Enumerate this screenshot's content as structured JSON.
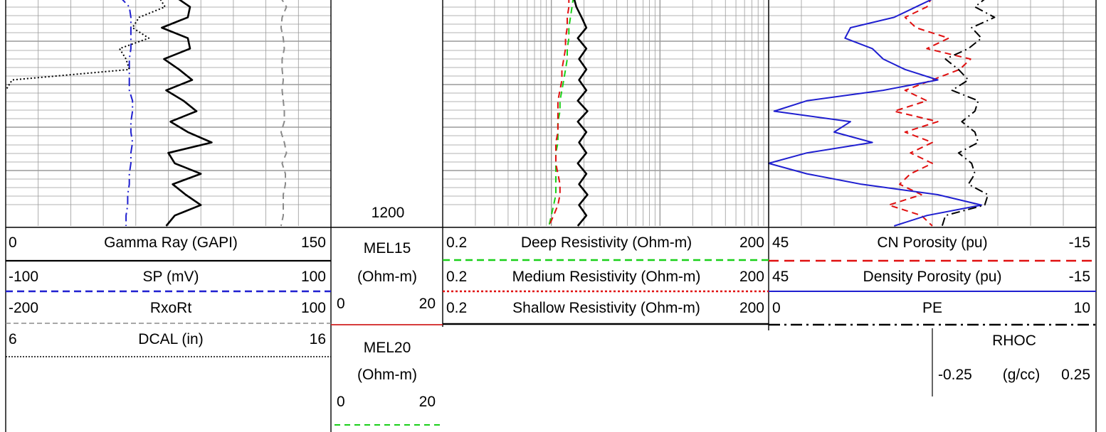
{
  "depth_label": "1200",
  "colors": {
    "black": "#000000",
    "blue": "#1f1fd0",
    "red": "#e01010",
    "green": "#19d019",
    "gray": "#8a8a8a",
    "grid": "#9a9a9a",
    "mel15": "#d02020",
    "mel20": "#19d019"
  },
  "track1": {
    "rows": [
      {
        "min": "0",
        "name": "Gamma Ray (GAPI)",
        "max": "150"
      },
      {
        "min": "-100",
        "name": "SP (mV)",
        "max": "100"
      },
      {
        "min": "-200",
        "name": "RxoRt",
        "max": "100"
      },
      {
        "min": "6",
        "name": "DCAL (in)",
        "max": "16"
      }
    ]
  },
  "track2": {
    "mel15": {
      "name": "MEL15",
      "unit": "(Ohm-m)",
      "min": "0",
      "max": "20"
    },
    "mel20": {
      "name": "MEL20",
      "unit": "(Ohm-m)",
      "min": "0",
      "max": "20"
    }
  },
  "track3": {
    "rows": [
      {
        "min": "0.2",
        "name": "Deep Resistivity (Ohm-m)",
        "max": "200"
      },
      {
        "min": "0.2",
        "name": "Medium Resistivity (Ohm-m)",
        "max": "200"
      },
      {
        "min": "0.2",
        "name": "Shallow Resistivity (Ohm-m)",
        "max": "200"
      }
    ]
  },
  "track4": {
    "rows": [
      {
        "min": "45",
        "name": "CN Porosity (pu)",
        "max": "-15"
      },
      {
        "min": "45",
        "name": "Density Porosity (pu)",
        "max": "-15"
      },
      {
        "min": "0",
        "name": "PE",
        "max": "10"
      }
    ],
    "rhoc": {
      "name": "RHOC",
      "min": "-0.25",
      "unit": "(g/cc)",
      "max": "0.25"
    }
  },
  "chart_data": {
    "type": "line",
    "title": "",
    "depth_tick": 1200,
    "tracks": [
      {
        "scale": "linear",
        "series": [
          {
            "name": "Gamma Ray (GAPI)",
            "range": [
              0,
              150
            ],
            "style": "solid",
            "color": "black",
            "values": [
              78,
              85,
              84,
              72,
              84,
              85,
              73,
              80,
              86,
              74,
              82,
              88,
              76,
              84,
              95,
              75,
              78,
              90,
              77,
              83,
              90,
              78,
              74
            ]
          },
          {
            "name": "SP (mV)",
            "range": [
              -100,
              100
            ],
            "style": "dash-dot",
            "color": "blue",
            "values": [
              -30,
              -24,
              -23,
              -23,
              -23,
              -23,
              -24,
              -24,
              -24,
              -24,
              -22,
              -22,
              -23,
              -23,
              -22,
              -23,
              -23,
              -24,
              -24,
              -25,
              -25,
              -26,
              -26
            ]
          },
          {
            "name": "RxoRt",
            "range": [
              -200,
              100
            ],
            "style": "dashed",
            "color": "gray",
            "values": [
              53,
              59,
              55,
              54,
              56,
              57,
              55,
              55,
              56,
              55,
              56,
              57,
              57,
              54,
              57,
              59,
              55,
              58,
              58,
              56,
              56,
              56,
              54
            ]
          },
          {
            "name": "DCAL (in)",
            "range": [
              6,
              16
            ],
            "style": "dotted",
            "color": "black",
            "values": [
              10.7,
              10.9,
              10.1,
              9.9,
              10.4,
              9.5,
              9.7,
              9.8,
              6.2,
              6.0,
              null,
              null,
              null,
              null,
              null,
              null,
              null,
              null,
              null,
              null,
              null,
              null,
              null
            ]
          }
        ]
      },
      {
        "scale": "log",
        "series": [
          {
            "name": "Deep Resistivity (Ohm-m)",
            "range": [
              0.2,
              200
            ],
            "style": "dashed",
            "color": "green",
            "values": [
              3.2,
              3.1,
              3.0,
              2.9,
              2.9,
              2.8,
              2.8,
              2.7,
              2.6,
              2.5,
              2.4,
              2.4,
              2.3,
              2.3,
              2.3,
              2.2,
              2.2,
              2.2,
              2.2,
              2.2,
              2.1,
              2.0,
              1.9
            ]
          },
          {
            "name": "Medium Resistivity (Ohm-m)",
            "range": [
              0.2,
              200
            ],
            "style": "dashed",
            "color": "red",
            "values": [
              2.9,
              2.9,
              2.8,
              2.8,
              2.7,
              2.7,
              2.6,
              2.5,
              2.5,
              2.4,
              2.3,
              2.3,
              2.3,
              2.3,
              2.2,
              2.2,
              2.2,
              2.3,
              2.4,
              2.4,
              2.3,
              2.1,
              1.9
            ]
          },
          {
            "name": "Shallow Resistivity (Ohm-m)",
            "range": [
              0.2,
              200
            ],
            "style": "solid",
            "color": "black",
            "values": [
              3.2,
              3.4,
              3.8,
              4.2,
              3.5,
              4.2,
              3.6,
              4.2,
              3.6,
              4.2,
              3.5,
              4.3,
              3.5,
              4.2,
              3.6,
              4.2,
              3.5,
              4.2,
              3.6,
              4.3,
              3.6,
              4.2,
              3.5
            ]
          }
        ]
      },
      {
        "scale": "linear",
        "series": [
          {
            "name": "CN Porosity (pu)",
            "range": [
              45,
              -15
            ],
            "style": "dashed",
            "color": "red",
            "values": [
              15,
              16,
              20,
              18,
              12,
              16,
              8,
              10,
              15,
              20,
              16,
              22,
              14,
              20,
              15,
              19,
              15,
              19,
              21,
              17,
              23,
              17,
              15
            ]
          },
          {
            "name": "Density Porosity (pu)",
            "range": [
              45,
              -15
            ],
            "style": "solid",
            "color": "blue",
            "values": [
              14,
              18,
              22,
              30,
              31,
              26,
              24,
              20,
              14,
              24,
              38,
              44,
              30,
              33,
              26,
              38,
              45,
              38,
              28,
              14,
              6,
              16,
              22
            ]
          },
          {
            "name": "PE",
            "range": [
              0,
              10
            ],
            "style": "dash-dot",
            "color": "black",
            "values": [
              6.7,
              6.3,
              6.9,
              6.2,
              6.5,
              6.1,
              5.4,
              5.8,
              6.1,
              5.6,
              6.4,
              6.3,
              5.9,
              6.3,
              6.4,
              5.8,
              6.2,
              6.3,
              6.1,
              6.7,
              6.6,
              5.4,
              5.3
            ]
          }
        ]
      }
    ]
  }
}
